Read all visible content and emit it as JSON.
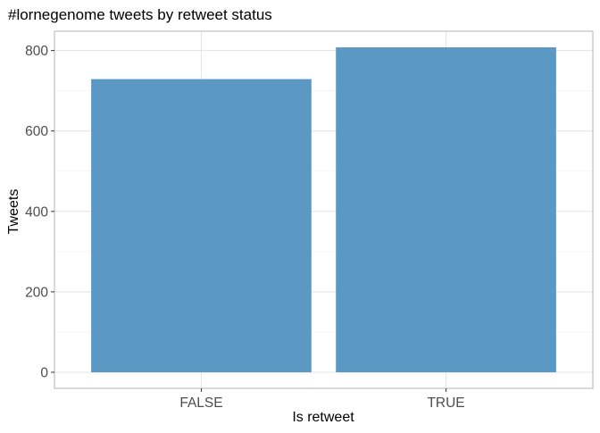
{
  "chart_data": {
    "type": "bar",
    "title": "#lornegenome tweets by retweet status",
    "xlabel": "Is retweet",
    "ylabel": "Tweets",
    "categories": [
      "FALSE",
      "TRUE"
    ],
    "values": [
      729,
      808
    ],
    "ylim": [
      -40,
      848
    ],
    "yticks": [
      0,
      200,
      400,
      600,
      800
    ],
    "bar_color": "#5b98c4",
    "grid": true,
    "legend": "none"
  },
  "colors": {
    "panel_border": "#b3b3b3",
    "grid_major": "#e3e3e3",
    "grid_minor": "#f2f2f2",
    "tick_text": "#4d4d4d",
    "tick_mark": "#333333"
  }
}
